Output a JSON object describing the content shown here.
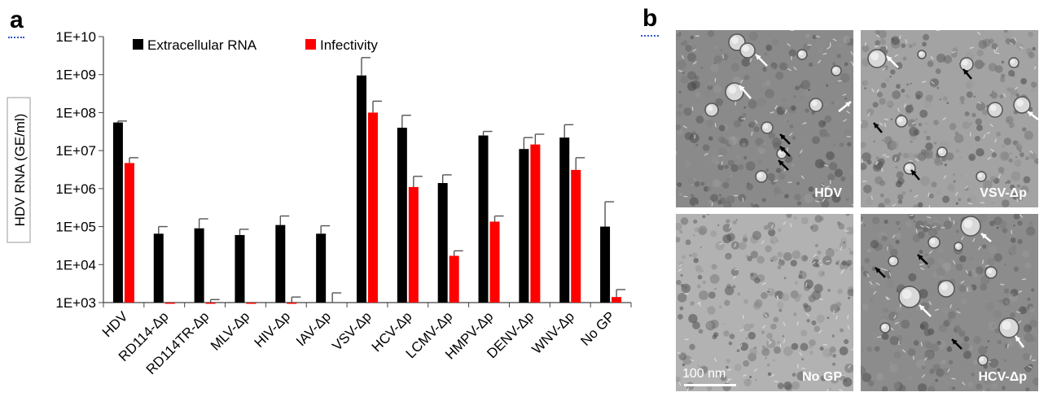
{
  "panel_a": {
    "letter": "a"
  },
  "panel_b": {
    "letter": "b",
    "images": [
      {
        "label": "HDV"
      },
      {
        "label": "VSV-Δp"
      },
      {
        "label": "No GP"
      },
      {
        "label": "HCV-Δp"
      }
    ],
    "scale_bar_label": "100 nm"
  },
  "colors": {
    "extracellular": "#000000",
    "infectivity": "#ff0000",
    "error": "#555555"
  },
  "chart_data": {
    "type": "bar",
    "ylabel": "HDV RNA (GE/ml)",
    "yscale": "log",
    "ylim": [
      1000,
      10000000000
    ],
    "yticks": [
      "1E+03",
      "1E+04",
      "1E+05",
      "1E+06",
      "1E+07",
      "1E+08",
      "1E+09",
      "1E+10"
    ],
    "legend_position": "top",
    "categories": [
      "HDV",
      "RD114-Δp",
      "RD114TR-Δp",
      "MLV-Δp",
      "HIV-Δp",
      "IAV-Δp",
      "VSV-Δp",
      "HCV-Δp",
      "LCMV-Δp",
      "HMPV-Δp",
      "DENV-Δp",
      "WNV-Δp",
      "No GP"
    ],
    "series": [
      {
        "name": "Extracellular RNA",
        "values": [
          55000000,
          65000,
          90000,
          60000,
          110000,
          65000,
          950000000,
          40000000,
          1400000,
          25000000,
          11000000,
          22000000,
          100000
        ],
        "error": [
          60000000,
          100000,
          160000,
          85000,
          190000,
          105000,
          2800000000,
          85000000,
          2300000,
          32000000,
          22000000,
          48000000,
          450000
        ]
      },
      {
        "name": "Infectivity",
        "values": [
          4700000,
          1000,
          1000,
          1000,
          1000,
          null,
          100000000,
          1100000,
          17000,
          135000,
          14500000,
          3100000,
          1400
        ],
        "error": [
          6500000,
          null,
          1200,
          null,
          1400,
          1800,
          200000000,
          2100000,
          23000,
          190000,
          27000000,
          6500000,
          2200
        ]
      }
    ]
  }
}
